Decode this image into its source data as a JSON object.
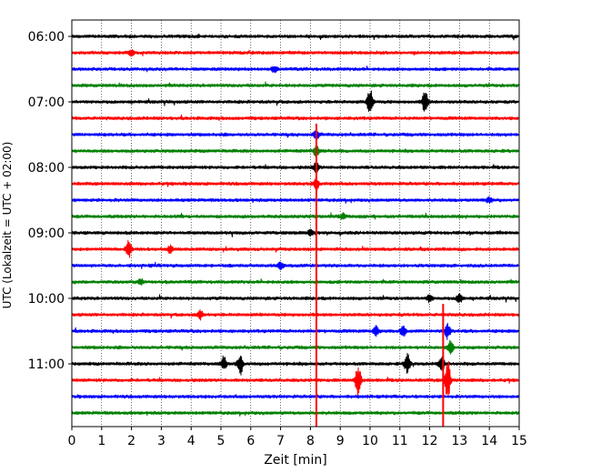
{
  "chart_data": {
    "type": "line",
    "description": "helicorder",
    "xlabel": "Zeit  [min]",
    "ylabel": "UTC (Lokalzeit = UTC + 02:00)",
    "xlim": [
      0,
      15
    ],
    "x_ticks": [
      0,
      1,
      2,
      3,
      4,
      5,
      6,
      7,
      8,
      9,
      10,
      11,
      12,
      13,
      14,
      15
    ],
    "x_tick_labels": [
      "0",
      "1",
      "2",
      "3",
      "4",
      "5",
      "6",
      "7",
      "8",
      "9",
      "10",
      "11",
      "12",
      "13",
      "14",
      "15"
    ],
    "y_tick_labels": [
      "06:00",
      "07:00",
      "08:00",
      "09:00",
      "10:00",
      "11:00"
    ],
    "y_tick_trace_index": [
      0,
      4,
      8,
      12,
      16,
      20
    ],
    "trace_colors": [
      "#000000",
      "#ff0000",
      "#0000ff",
      "#008000"
    ],
    "grid": "vertical dotted",
    "traces": [
      {
        "start": "06:00",
        "events": []
      },
      {
        "start": "06:15",
        "events": [
          {
            "t": 2.0,
            "amp": 3
          }
        ]
      },
      {
        "start": "06:30",
        "events": [
          {
            "t": 6.8,
            "amp": 3
          }
        ]
      },
      {
        "start": "06:45",
        "events": []
      },
      {
        "start": "07:00",
        "events": [
          {
            "t": 10.0,
            "amp": 16
          },
          {
            "t": 11.85,
            "amp": 14
          }
        ]
      },
      {
        "start": "07:15",
        "events": []
      },
      {
        "start": "07:30",
        "events": [
          {
            "t": 8.2,
            "amp": 6
          }
        ]
      },
      {
        "start": "07:45",
        "events": [
          {
            "t": 8.2,
            "amp": 6
          }
        ]
      },
      {
        "start": "08:00",
        "events": [
          {
            "t": 8.2,
            "amp": 6
          }
        ]
      },
      {
        "start": "08:15",
        "events": [
          {
            "t": 8.2,
            "amp": 6
          }
        ]
      },
      {
        "start": "08:30",
        "events": [
          {
            "t": 14.0,
            "amp": 3
          }
        ]
      },
      {
        "start": "08:45",
        "events": [
          {
            "t": 9.1,
            "amp": 3
          }
        ]
      },
      {
        "start": "09:00",
        "events": [
          {
            "t": 8.0,
            "amp": 4
          }
        ]
      },
      {
        "start": "09:15",
        "events": [
          {
            "t": 1.9,
            "amp": 10
          },
          {
            "t": 3.3,
            "amp": 4
          }
        ]
      },
      {
        "start": "09:30",
        "events": [
          {
            "t": 7.0,
            "amp": 5
          }
        ]
      },
      {
        "start": "09:45",
        "events": [
          {
            "t": 2.3,
            "amp": 3
          }
        ]
      },
      {
        "start": "10:00",
        "events": [
          {
            "t": 12.0,
            "amp": 4
          },
          {
            "t": 13.0,
            "amp": 5
          }
        ]
      },
      {
        "start": "10:15",
        "events": [
          {
            "t": 4.3,
            "amp": 5
          }
        ]
      },
      {
        "start": "10:30",
        "events": [
          {
            "t": 10.2,
            "amp": 6
          },
          {
            "t": 11.1,
            "amp": 6
          },
          {
            "t": 12.6,
            "amp": 8
          }
        ]
      },
      {
        "start": "10:45",
        "events": [
          {
            "t": 12.7,
            "amp": 7
          }
        ]
      },
      {
        "start": "11:00",
        "events": [
          {
            "t": 5.1,
            "amp": 8
          },
          {
            "t": 5.65,
            "amp": 12
          },
          {
            "t": 11.25,
            "amp": 12
          },
          {
            "t": 12.4,
            "amp": 9
          }
        ]
      },
      {
        "start": "11:15",
        "events": [
          {
            "t": 9.6,
            "amp": 20
          },
          {
            "t": 12.6,
            "amp": 24
          }
        ]
      },
      {
        "start": "11:30",
        "events": []
      },
      {
        "start": "11:45",
        "events": []
      }
    ],
    "spikes": [
      {
        "t": 8.2,
        "from_trace": 6,
        "to_trace": 24
      },
      {
        "t": 12.45,
        "from_trace": 17,
        "to_trace": 24
      }
    ]
  }
}
